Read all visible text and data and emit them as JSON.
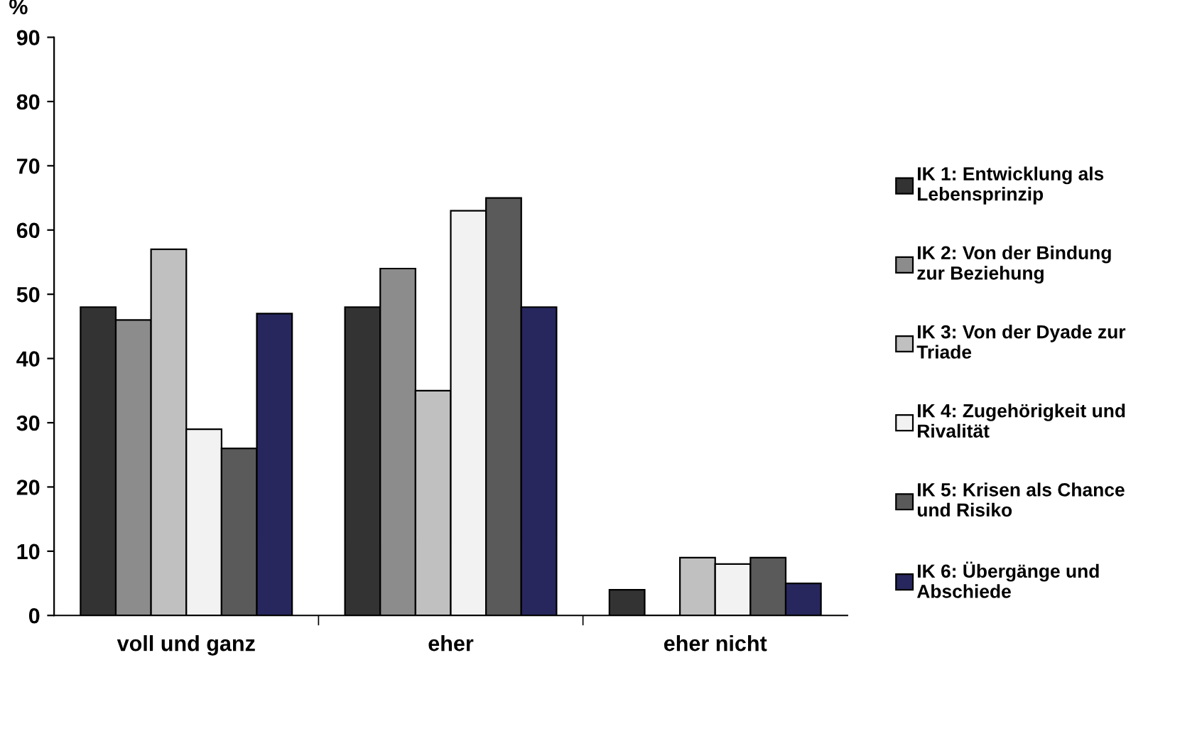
{
  "chart_data": {
    "type": "bar",
    "ylabel": "%",
    "categories": [
      "voll und ganz",
      "eher",
      "eher nicht"
    ],
    "ylim": [
      0,
      90
    ],
    "yticks": [
      0,
      10,
      20,
      30,
      40,
      50,
      60,
      70,
      80,
      90
    ],
    "grid": false,
    "legend": "right",
    "series": [
      {
        "name": "IK 1: Entwicklung als\nLebensprinzip",
        "color": "#333333",
        "values": [
          48,
          48,
          4
        ]
      },
      {
        "name": "IK 2: Von der Bindung\nzur Beziehung",
        "color": "#8c8c8c",
        "values": [
          46,
          54,
          0
        ]
      },
      {
        "name": "IK 3: Von der Dyade zur\nTriade",
        "color": "#c0c0c0",
        "values": [
          57,
          35,
          9
        ]
      },
      {
        "name": "IK 4: Zugehörigkeit und\nRivalität",
        "color": "#f2f2f2",
        "values": [
          29,
          63,
          8
        ]
      },
      {
        "name": "IK 5: Krisen als Chance\nund Risiko",
        "color": "#5a5a5a",
        "values": [
          26,
          65,
          9
        ]
      },
      {
        "name": "IK 6: Übergänge und\nAbschiede",
        "color": "#27275e",
        "values": [
          47,
          48,
          5
        ]
      }
    ]
  }
}
